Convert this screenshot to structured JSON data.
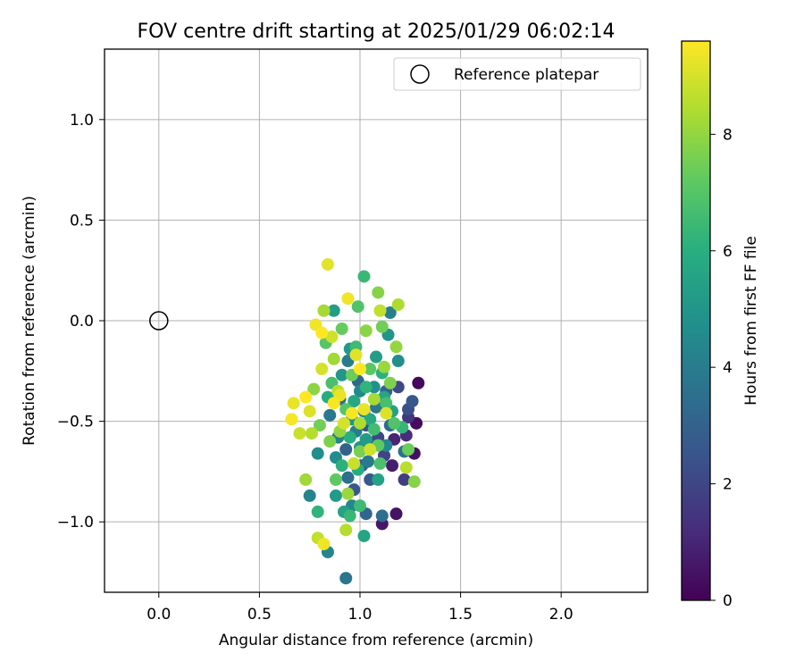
{
  "chart_data": {
    "type": "scatter",
    "title": "FOV centre drift starting at 2025/01/29 06:02:14",
    "xlabel": "Angular distance from reference (arcmin)",
    "ylabel": "Rotation from reference (arcmin)",
    "xlim": [
      -0.27,
      2.43
    ],
    "ylim": [
      -1.35,
      1.35
    ],
    "xticks": [
      "0.0",
      "0.5",
      "1.0",
      "1.5",
      "2.0"
    ],
    "yticks": [
      "−1.0",
      "−0.5",
      "0.0",
      "0.5",
      "1.0"
    ],
    "grid": true,
    "legend": {
      "placement": "top-right",
      "entries": [
        "Reference platepar"
      ]
    },
    "colorbar": {
      "label": "Hours from first FF file",
      "range": [
        0,
        9.6
      ],
      "colormap": "viridis",
      "ticks": [
        "0",
        "2",
        "4",
        "6",
        "8"
      ]
    },
    "reference_point": {
      "x": 0.0,
      "y": 0.0
    },
    "points": [
      {
        "x": 1.29,
        "y": -0.31,
        "c": 0.2
      },
      {
        "x": 1.28,
        "y": -0.51,
        "c": 0.3
      },
      {
        "x": 1.27,
        "y": -0.66,
        "c": 0.4
      },
      {
        "x": 1.18,
        "y": -0.96,
        "c": 0.5
      },
      {
        "x": 1.11,
        "y": -1.01,
        "c": 0.6
      },
      {
        "x": 1.16,
        "y": -0.72,
        "c": 0.8
      },
      {
        "x": 1.17,
        "y": -0.59,
        "c": 1.0
      },
      {
        "x": 1.23,
        "y": -0.57,
        "c": 1.2
      },
      {
        "x": 1.24,
        "y": -0.48,
        "c": 1.5
      },
      {
        "x": 1.22,
        "y": -0.79,
        "c": 1.7
      },
      {
        "x": 1.12,
        "y": -0.67,
        "c": 1.9
      },
      {
        "x": 1.09,
        "y": -0.58,
        "c": 2.0
      },
      {
        "x": 1.19,
        "y": -0.33,
        "c": 2.1
      },
      {
        "x": 1.24,
        "y": -0.44,
        "c": 2.3
      },
      {
        "x": 1.03,
        "y": -0.52,
        "c": 2.4
      },
      {
        "x": 1.26,
        "y": -0.4,
        "c": 2.6
      },
      {
        "x": 0.97,
        "y": -0.84,
        "c": 2.6
      },
      {
        "x": 1.05,
        "y": -0.79,
        "c": 2.7
      },
      {
        "x": 1.06,
        "y": -0.62,
        "c": 2.8
      },
      {
        "x": 1.01,
        "y": -0.72,
        "c": 2.9
      },
      {
        "x": 1.13,
        "y": -0.35,
        "c": 3.0
      },
      {
        "x": 0.93,
        "y": -0.64,
        "c": 3.0
      },
      {
        "x": 1.03,
        "y": -0.96,
        "c": 3.1
      },
      {
        "x": 0.99,
        "y": -0.3,
        "c": 3.2
      },
      {
        "x": 1.15,
        "y": -0.52,
        "c": 3.3
      },
      {
        "x": 0.9,
        "y": -0.39,
        "c": 3.4
      },
      {
        "x": 0.94,
        "y": -0.78,
        "c": 3.5
      },
      {
        "x": 1.11,
        "y": -0.97,
        "c": 3.5
      },
      {
        "x": 1.22,
        "y": -0.65,
        "c": 3.6
      },
      {
        "x": 0.93,
        "y": -1.28,
        "c": 3.7
      },
      {
        "x": 1.08,
        "y": -0.43,
        "c": 3.8
      },
      {
        "x": 0.85,
        "y": -0.47,
        "c": 3.8
      },
      {
        "x": 1.04,
        "y": -0.7,
        "c": 3.9
      },
      {
        "x": 0.98,
        "y": -0.55,
        "c": 4.0
      },
      {
        "x": 0.94,
        "y": -0.2,
        "c": 4.0
      },
      {
        "x": 1.15,
        "y": 0.04,
        "c": 4.1
      },
      {
        "x": 0.89,
        "y": -0.58,
        "c": 4.2
      },
      {
        "x": 1.02,
        "y": -0.45,
        "c": 4.2
      },
      {
        "x": 0.84,
        "y": -1.15,
        "c": 4.3
      },
      {
        "x": 0.75,
        "y": -0.87,
        "c": 4.3
      },
      {
        "x": 0.96,
        "y": -0.92,
        "c": 4.4
      },
      {
        "x": 1.0,
        "y": -0.35,
        "c": 4.5
      },
      {
        "x": 1.13,
        "y": -0.62,
        "c": 4.5
      },
      {
        "x": 0.88,
        "y": -0.68,
        "c": 4.6
      },
      {
        "x": 1.19,
        "y": -0.2,
        "c": 4.7
      },
      {
        "x": 0.79,
        "y": -0.66,
        "c": 4.7
      },
      {
        "x": 1.07,
        "y": -0.33,
        "c": 4.8
      },
      {
        "x": 0.96,
        "y": -0.49,
        "c": 4.9
      },
      {
        "x": 1.0,
        "y": -0.63,
        "c": 4.9
      },
      {
        "x": 0.91,
        "y": -0.27,
        "c": 5.0
      },
      {
        "x": 1.14,
        "y": -0.07,
        "c": 5.0
      },
      {
        "x": 0.95,
        "y": -0.14,
        "c": 5.1
      },
      {
        "x": 1.03,
        "y": -0.59,
        "c": 5.2
      },
      {
        "x": 0.88,
        "y": -0.87,
        "c": 5.2
      },
      {
        "x": 1.08,
        "y": -0.18,
        "c": 5.3
      },
      {
        "x": 0.87,
        "y": 0.05,
        "c": 5.3
      },
      {
        "x": 1.16,
        "y": -0.45,
        "c": 5.4
      },
      {
        "x": 0.92,
        "y": -0.95,
        "c": 5.5
      },
      {
        "x": 1.09,
        "y": -0.79,
        "c": 5.5
      },
      {
        "x": 1.02,
        "y": -1.07,
        "c": 5.6
      },
      {
        "x": 0.97,
        "y": -0.4,
        "c": 5.7
      },
      {
        "x": 1.12,
        "y": -0.38,
        "c": 5.7
      },
      {
        "x": 1.05,
        "y": -0.49,
        "c": 5.8
      },
      {
        "x": 0.84,
        "y": -0.38,
        "c": 5.9
      },
      {
        "x": 0.99,
        "y": -0.74,
        "c": 5.9
      },
      {
        "x": 0.95,
        "y": -0.58,
        "c": 6.0
      },
      {
        "x": 1.11,
        "y": -0.26,
        "c": 6.1
      },
      {
        "x": 0.91,
        "y": -0.72,
        "c": 6.1
      },
      {
        "x": 1.03,
        "y": -0.33,
        "c": 6.2
      },
      {
        "x": 0.79,
        "y": -0.95,
        "c": 6.2
      },
      {
        "x": 1.21,
        "y": -0.53,
        "c": 6.3
      },
      {
        "x": 1.02,
        "y": 0.22,
        "c": 6.4
      },
      {
        "x": 0.95,
        "y": -0.97,
        "c": 6.4
      },
      {
        "x": 1.0,
        "y": -0.92,
        "c": 6.5
      },
      {
        "x": 0.98,
        "y": -0.13,
        "c": 6.5
      },
      {
        "x": 1.07,
        "y": -0.54,
        "c": 6.6
      },
      {
        "x": 0.86,
        "y": -0.31,
        "c": 6.7
      },
      {
        "x": 1.13,
        "y": -0.41,
        "c": 6.7
      },
      {
        "x": 1.1,
        "y": -0.71,
        "c": 6.8
      },
      {
        "x": 0.99,
        "y": 0.07,
        "c": 6.9
      },
      {
        "x": 1.17,
        "y": -0.51,
        "c": 6.9
      },
      {
        "x": 0.93,
        "y": -0.44,
        "c": 7.0
      },
      {
        "x": 0.83,
        "y": -0.11,
        "c": 7.0
      },
      {
        "x": 1.05,
        "y": -0.24,
        "c": 7.1
      },
      {
        "x": 0.88,
        "y": -0.79,
        "c": 7.2
      },
      {
        "x": 1.09,
        "y": -0.62,
        "c": 7.2
      },
      {
        "x": 0.91,
        "y": -0.04,
        "c": 7.3
      },
      {
        "x": 1.24,
        "y": -0.64,
        "c": 7.4
      },
      {
        "x": 0.96,
        "y": -0.27,
        "c": 7.4
      },
      {
        "x": 1.11,
        "y": -0.03,
        "c": 7.5
      },
      {
        "x": 0.8,
        "y": -0.52,
        "c": 7.5
      },
      {
        "x": 1.0,
        "y": -0.65,
        "c": 7.6
      },
      {
        "x": 1.15,
        "y": -0.31,
        "c": 7.7
      },
      {
        "x": 0.85,
        "y": -0.6,
        "c": 7.7
      },
      {
        "x": 1.09,
        "y": 0.14,
        "c": 7.8
      },
      {
        "x": 1.27,
        "y": -0.8,
        "c": 7.8
      },
      {
        "x": 0.77,
        "y": -0.34,
        "c": 7.9
      },
      {
        "x": 1.03,
        "y": -0.05,
        "c": 7.9
      },
      {
        "x": 0.9,
        "y": -0.55,
        "c": 8.0
      },
      {
        "x": 1.18,
        "y": -0.13,
        "c": 8.0
      },
      {
        "x": 0.94,
        "y": -0.86,
        "c": 8.1
      },
      {
        "x": 1.12,
        "y": -0.23,
        "c": 8.1
      },
      {
        "x": 0.73,
        "y": -0.79,
        "c": 8.2
      },
      {
        "x": 0.87,
        "y": -0.19,
        "c": 8.2
      },
      {
        "x": 1.07,
        "y": -0.39,
        "c": 8.3
      },
      {
        "x": 0.82,
        "y": 0.05,
        "c": 8.3
      },
      {
        "x": 1.0,
        "y": -0.51,
        "c": 8.4
      },
      {
        "x": 1.19,
        "y": 0.08,
        "c": 8.4
      },
      {
        "x": 0.93,
        "y": -1.04,
        "c": 8.5
      },
      {
        "x": 0.76,
        "y": -0.56,
        "c": 8.5
      },
      {
        "x": 1.23,
        "y": -0.73,
        "c": 8.6
      },
      {
        "x": 0.89,
        "y": -0.35,
        "c": 8.6
      },
      {
        "x": 1.1,
        "y": 0.05,
        "c": 8.7
      },
      {
        "x": 0.79,
        "y": -1.08,
        "c": 8.7
      },
      {
        "x": 0.97,
        "y": -0.71,
        "c": 8.8
      },
      {
        "x": 0.7,
        "y": -0.56,
        "c": 8.8
      },
      {
        "x": 0.86,
        "y": -0.08,
        "c": 8.9
      },
      {
        "x": 1.05,
        "y": -0.64,
        "c": 8.9
      },
      {
        "x": 0.92,
        "y": -0.51,
        "c": 9.0
      },
      {
        "x": 0.81,
        "y": -0.24,
        "c": 9.0
      },
      {
        "x": 1.13,
        "y": -0.46,
        "c": 9.1
      },
      {
        "x": 0.75,
        "y": -0.45,
        "c": 9.1
      },
      {
        "x": 0.98,
        "y": -0.17,
        "c": 9.2
      },
      {
        "x": 0.84,
        "y": 0.28,
        "c": 9.2
      },
      {
        "x": 0.67,
        "y": -0.41,
        "c": 9.3
      },
      {
        "x": 0.9,
        "y": -0.37,
        "c": 9.3
      },
      {
        "x": 1.02,
        "y": -0.44,
        "c": 9.3
      },
      {
        "x": 0.82,
        "y": -1.11,
        "c": 9.4
      },
      {
        "x": 0.94,
        "y": 0.11,
        "c": 9.4
      },
      {
        "x": 0.78,
        "y": -0.02,
        "c": 9.4
      },
      {
        "x": 0.66,
        "y": -0.49,
        "c": 9.5
      },
      {
        "x": 0.87,
        "y": -0.41,
        "c": 9.5
      },
      {
        "x": 0.96,
        "y": -0.46,
        "c": 9.5
      },
      {
        "x": 0.81,
        "y": -0.06,
        "c": 9.6
      },
      {
        "x": 1.0,
        "y": -0.24,
        "c": 9.6
      },
      {
        "x": 0.73,
        "y": -0.38,
        "c": 9.6
      }
    ]
  }
}
